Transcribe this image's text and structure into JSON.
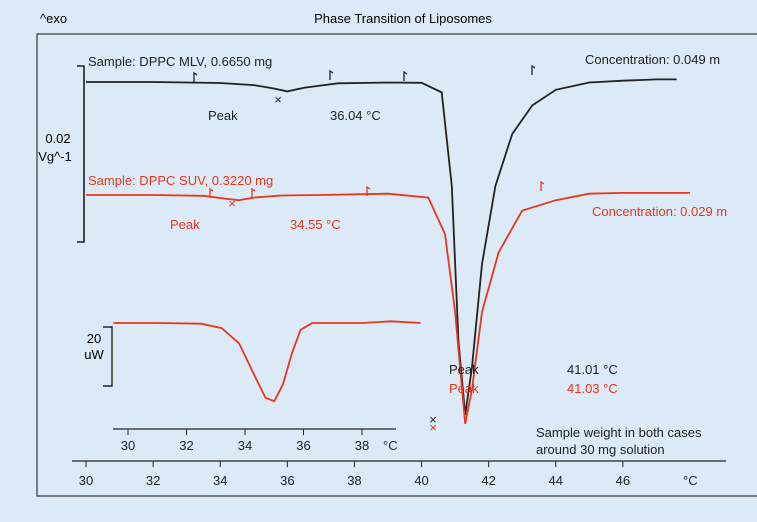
{
  "chart_data": {
    "type": "line",
    "title": "Phase Transition of Liposomes",
    "yaxis_label": "^exo",
    "xlabel": "°C",
    "xlim": [
      30,
      48
    ],
    "xticks": [
      "30",
      "32",
      "34",
      "36",
      "38",
      "40",
      "42",
      "44",
      "46",
      "48"
    ],
    "scale_bar": {
      "value": "0.02",
      "unit": "Vg^-1"
    },
    "colors": {
      "mlv": "#222222",
      "suv": "#e8361c",
      "background": "#dbeaf6",
      "frame": "#333333"
    },
    "series": [
      {
        "name": "Sample: DPPC MLV, 0.6650 mg",
        "concentration": "Concentration: 0.049 m",
        "peak_label": "Peak",
        "peak_value": "36.04 °C",
        "main_peak_label": "Peak",
        "main_peak_value": "41.01 °C",
        "x": [
          30.0,
          32.0,
          34.0,
          35.0,
          35.6,
          36.0,
          36.5,
          37.5,
          39.0,
          40.0,
          40.6,
          40.9,
          41.1,
          41.3,
          41.5,
          41.8,
          42.2,
          42.7,
          43.3,
          44.0,
          45.0,
          46.0,
          47.0,
          47.6
        ],
        "y": [
          0.0,
          0.0,
          -0.04,
          -0.12,
          -0.25,
          -0.36,
          -0.22,
          -0.05,
          -0.02,
          -0.03,
          -0.4,
          -4.0,
          -10.0,
          -12.8,
          -11.0,
          -7.0,
          -4.0,
          -2.0,
          -0.9,
          -0.3,
          -0.02,
          0.05,
          0.1,
          0.1
        ]
      },
      {
        "name": "Sample: DPPC SUV, 0.3220 mg",
        "concentration": "Concentration: 0.029 m",
        "peak_label": "Peak",
        "peak_value": "34.55 °C",
        "main_peak_label": "Peak",
        "main_peak_value": "41.03 °C",
        "x": [
          30.0,
          32.0,
          33.5,
          34.2,
          34.55,
          35.0,
          35.8,
          37.0,
          39.0,
          40.2,
          40.7,
          41.0,
          41.3,
          41.5,
          41.8,
          42.3,
          43.0,
          44.0,
          45.0,
          46.0,
          47.0,
          48.0
        ],
        "y": [
          0.0,
          0.0,
          -0.03,
          -0.15,
          -0.2,
          -0.1,
          -0.02,
          0.0,
          0.05,
          -0.1,
          -1.5,
          -4.5,
          -8.8,
          -7.5,
          -4.5,
          -2.2,
          -0.6,
          -0.2,
          0.05,
          0.08,
          0.08,
          0.08
        ]
      }
    ],
    "inset": {
      "scale_value": "20",
      "scale_unit": "uW",
      "xlim": [
        29.5,
        40
      ],
      "xticks": [
        "30",
        "32",
        "34",
        "36",
        "38"
      ],
      "xlabel": "°C",
      "x": [
        29.5,
        31.0,
        32.5,
        33.2,
        33.8,
        34.3,
        34.7,
        35.0,
        35.3,
        35.6,
        35.9,
        36.3,
        37.0,
        38.0,
        39.0,
        40.0
      ],
      "y": [
        0.0,
        0.0,
        -0.02,
        -0.15,
        -0.6,
        -1.5,
        -2.2,
        -2.3,
        -1.8,
        -0.9,
        -0.2,
        0.0,
        0.0,
        0.0,
        0.05,
        0.0
      ]
    },
    "note_line1": "Sample weight in both cases",
    "note_line2": "around 30 mg solution"
  }
}
